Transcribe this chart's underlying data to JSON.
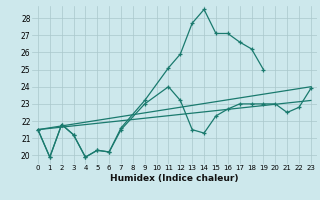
{
  "xlabel": "Humidex (Indice chaleur)",
  "bg_color": "#cde8ec",
  "grid_color": "#aac8cc",
  "line_color": "#1a7a6e",
  "xlim": [
    -0.5,
    23.5
  ],
  "ylim": [
    19.5,
    28.7
  ],
  "xtick_labels": [
    "0",
    "1",
    "2",
    "3",
    "4",
    "5",
    "6",
    "7",
    "8",
    "9",
    "10",
    "11",
    "12",
    "13",
    "14",
    "15",
    "16",
    "17",
    "18",
    "19",
    "20",
    "21",
    "22",
    "23"
  ],
  "ytick_labels": [
    "20",
    "21",
    "22",
    "23",
    "24",
    "25",
    "26",
    "27",
    "28"
  ],
  "ytick_vals": [
    20,
    21,
    22,
    23,
    24,
    25,
    26,
    27,
    28
  ],
  "curve1_x": [
    0,
    1,
    2,
    3,
    4,
    5,
    6,
    7,
    9,
    11,
    12,
    13,
    14,
    15,
    16,
    17,
    18,
    19
  ],
  "curve1_y": [
    21.5,
    19.9,
    21.8,
    21.2,
    19.9,
    20.3,
    20.2,
    21.6,
    23.2,
    25.1,
    25.9,
    27.7,
    28.5,
    27.1,
    27.1,
    26.6,
    26.2,
    25.0
  ],
  "curve2_x": [
    0,
    1,
    2,
    3,
    4,
    5,
    6,
    7,
    9,
    11,
    12,
    13,
    14,
    15,
    16,
    17,
    18,
    19,
    20,
    21,
    22,
    23
  ],
  "curve2_y": [
    21.5,
    19.9,
    21.8,
    21.2,
    19.9,
    20.3,
    20.2,
    21.5,
    23.0,
    24.0,
    23.2,
    21.5,
    21.3,
    22.3,
    22.7,
    23.0,
    23.0,
    23.0,
    23.0,
    22.5,
    22.8,
    23.9
  ],
  "trend1_x": [
    0,
    23
  ],
  "trend1_y": [
    21.5,
    24.0
  ],
  "trend2_x": [
    0,
    23
  ],
  "trend2_y": [
    21.5,
    23.2
  ]
}
